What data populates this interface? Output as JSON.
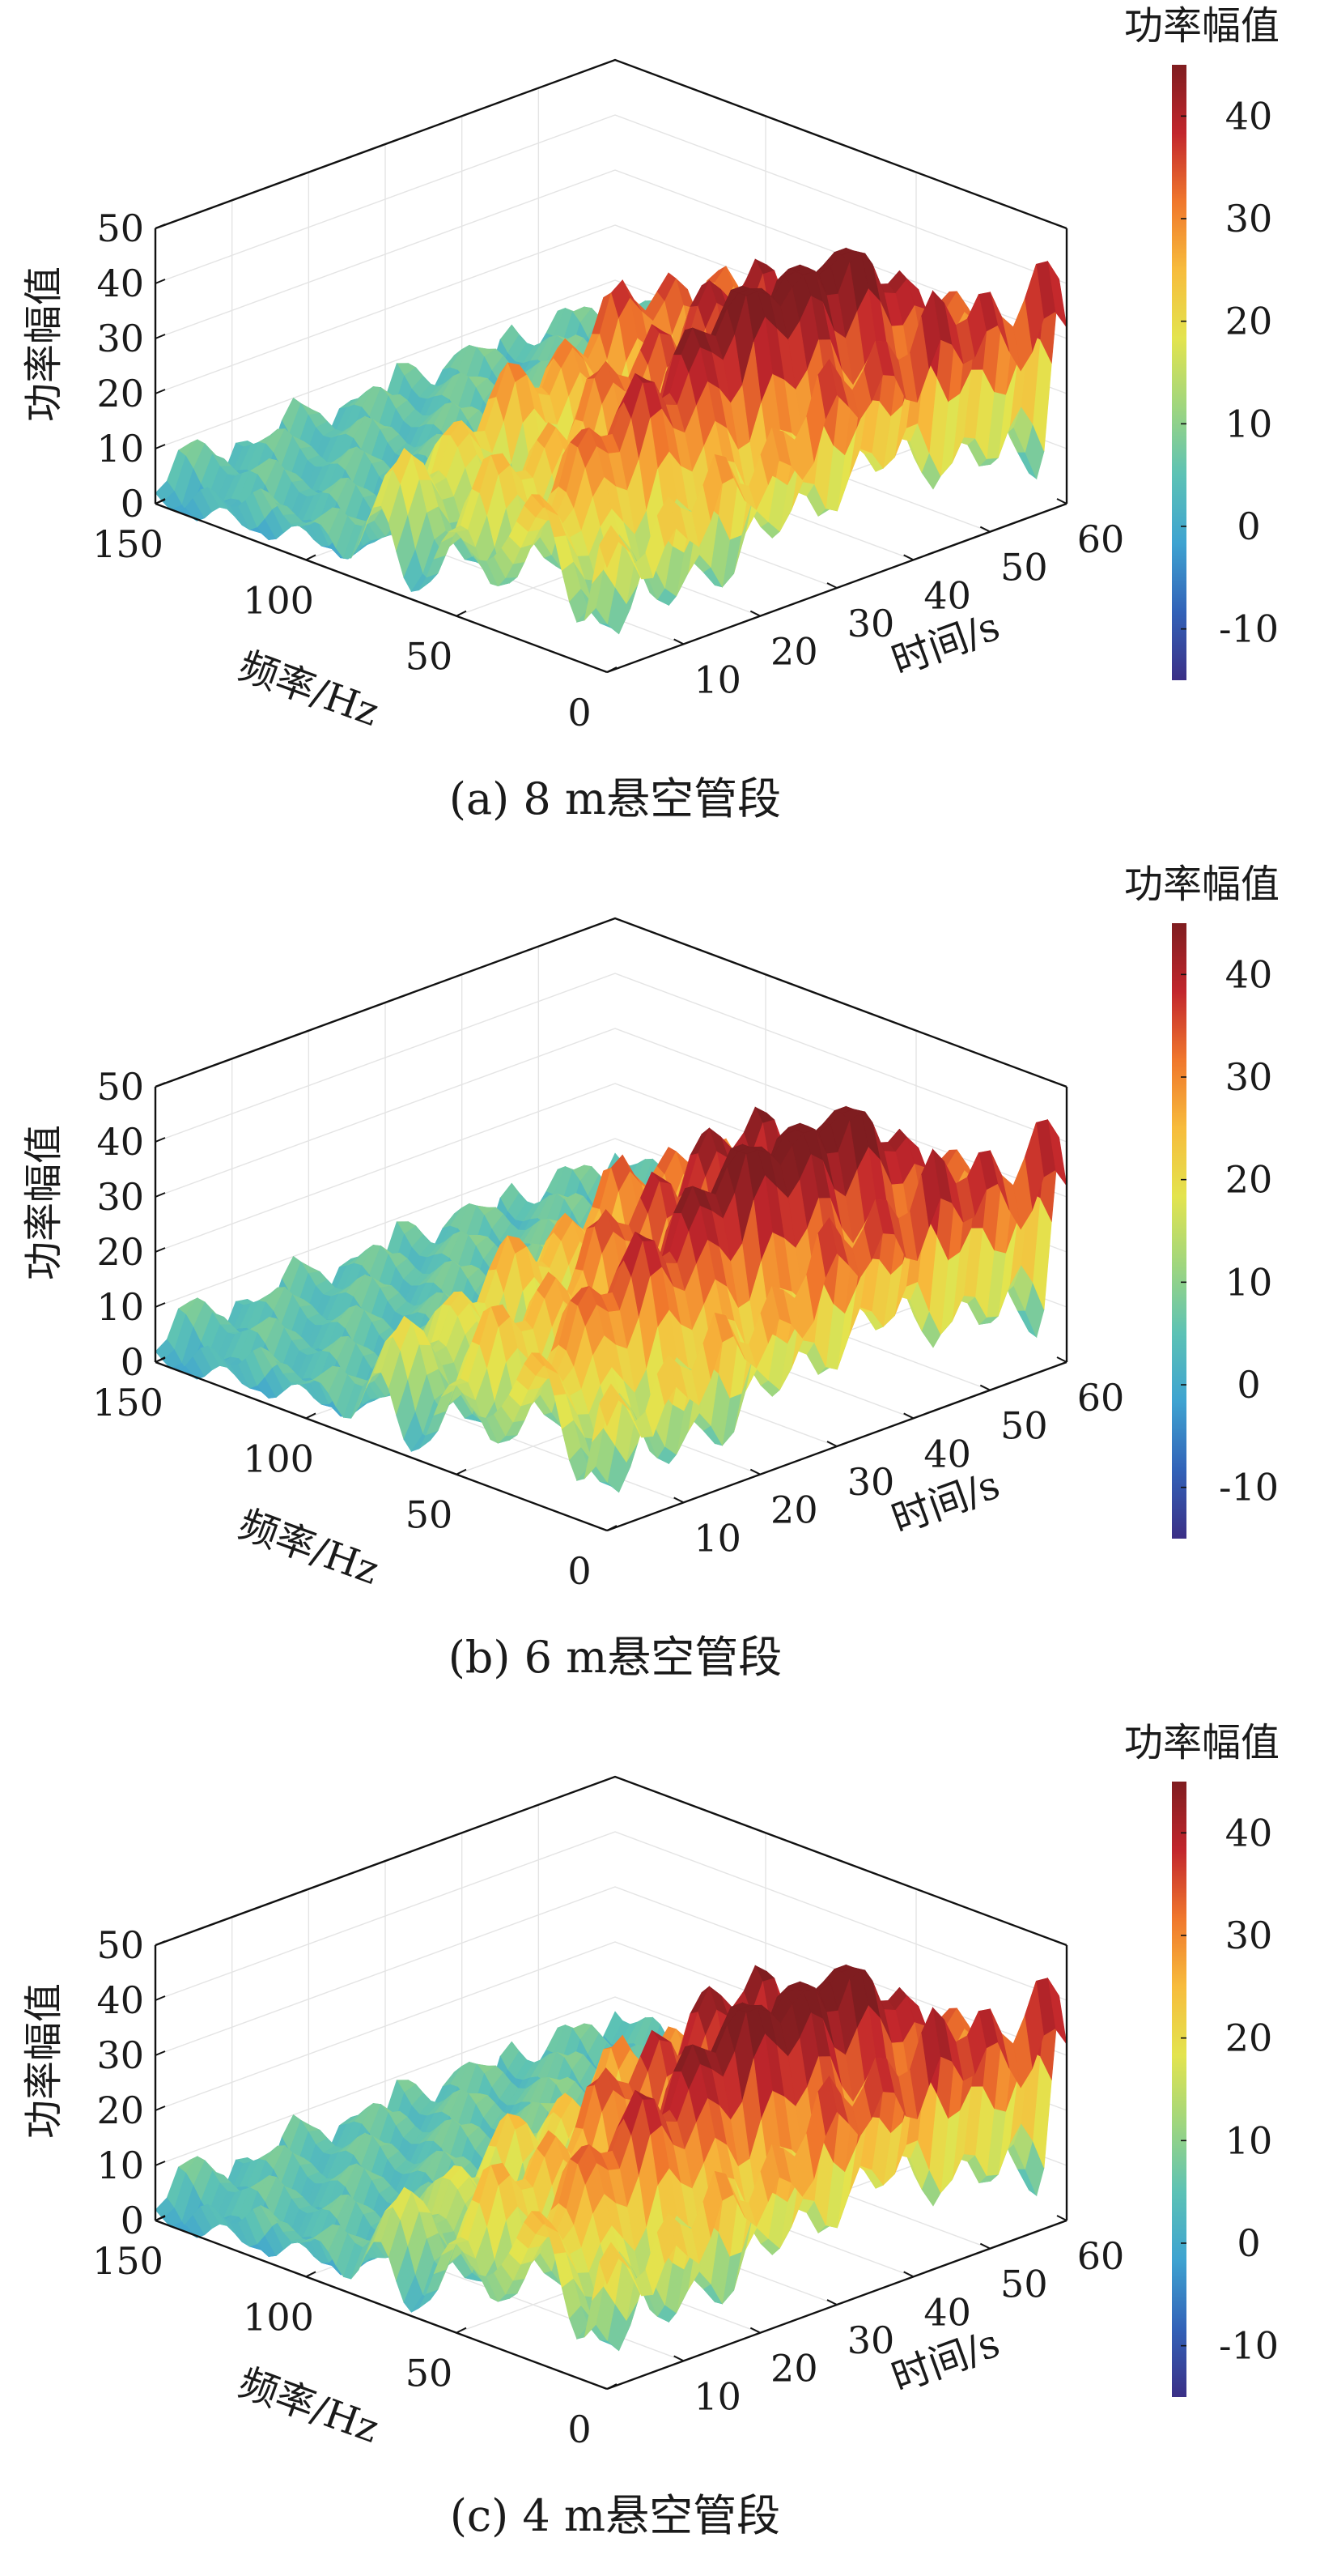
{
  "chart_data": [
    {
      "type": "surface",
      "caption": "(a)  8 m悬空管段",
      "colorbar_label": "功率幅值",
      "zlabel": "功率幅值",
      "xlabel": "频率/Hz",
      "ylabel": "时间/s",
      "freq_ticks": [
        "0",
        "50",
        "100",
        "150"
      ],
      "time_ticks": [
        "10",
        "20",
        "30",
        "40",
        "50",
        "60"
      ],
      "z_ticks": [
        "0",
        "10",
        "20",
        "30",
        "40",
        "50"
      ],
      "colorbar_ticks": [
        "-10",
        "0",
        "10",
        "20",
        "30",
        "40"
      ],
      "freq_range": [
        0,
        150
      ],
      "time_range": [
        0,
        60
      ],
      "z_range": [
        0,
        50
      ],
      "color_range": [
        -15,
        45
      ],
      "ridges": [
        {
          "freq_hz": 2,
          "peak": 37,
          "shape": "rising",
          "width": 4
        },
        {
          "freq_hz": 25,
          "peak": 40,
          "shape": "hump",
          "width": 10
        },
        {
          "freq_hz": 50,
          "peak": 28,
          "shape": "hump",
          "width": 8
        },
        {
          "freq_hz": 75,
          "peak": 25,
          "shape": "hump",
          "width": 8
        }
      ]
    },
    {
      "type": "surface",
      "caption": "(b)  6 m悬空管段",
      "colorbar_label": "功率幅值",
      "zlabel": "功率幅值",
      "xlabel": "频率/Hz",
      "ylabel": "时间/s",
      "freq_ticks": [
        "0",
        "50",
        "100",
        "150"
      ],
      "time_ticks": [
        "10",
        "20",
        "30",
        "40",
        "50",
        "60"
      ],
      "z_ticks": [
        "0",
        "10",
        "20",
        "30",
        "40",
        "50"
      ],
      "colorbar_ticks": [
        "-10",
        "0",
        "10",
        "20",
        "30",
        "40"
      ],
      "freq_range": [
        0,
        150
      ],
      "time_range": [
        0,
        60
      ],
      "z_range": [
        0,
        50
      ],
      "color_range": [
        -15,
        45
      ],
      "ridges": [
        {
          "freq_hz": 2,
          "peak": 37,
          "shape": "rising",
          "width": 4
        },
        {
          "freq_hz": 25,
          "peak": 40,
          "shape": "hump",
          "width": 10
        },
        {
          "freq_hz": 50,
          "peak": 30,
          "shape": "hump",
          "width": 8
        },
        {
          "freq_hz": 75,
          "peak": 22,
          "shape": "hump",
          "width": 8
        }
      ]
    },
    {
      "type": "surface",
      "caption": "(c)  4 m悬空管段",
      "colorbar_label": "功率幅值",
      "zlabel": "功率幅值",
      "xlabel": "频率/Hz",
      "ylabel": "时间/s",
      "freq_ticks": [
        "0",
        "50",
        "100",
        "150"
      ],
      "time_ticks": [
        "10",
        "20",
        "30",
        "40",
        "50",
        "60"
      ],
      "z_ticks": [
        "0",
        "10",
        "20",
        "30",
        "40",
        "50"
      ],
      "colorbar_ticks": [
        "-10",
        "0",
        "10",
        "20",
        "30",
        "40"
      ],
      "freq_range": [
        0,
        150
      ],
      "time_range": [
        0,
        60
      ],
      "z_range": [
        0,
        50
      ],
      "color_range": [
        -15,
        45
      ],
      "ridges": [
        {
          "freq_hz": 2,
          "peak": 37,
          "shape": "rising",
          "width": 4
        },
        {
          "freq_hz": 25,
          "peak": 40,
          "shape": "hump",
          "width": 10
        },
        {
          "freq_hz": 50,
          "peak": 30,
          "shape": "hump",
          "width": 8
        },
        {
          "freq_hz": 75,
          "peak": 18,
          "shape": "hump",
          "width": 8
        }
      ]
    }
  ],
  "colormap": [
    "#3b2f86",
    "#3262b8",
    "#3ea3d1",
    "#5cc2b5",
    "#9fd67e",
    "#e3e44e",
    "#f7bc3c",
    "#f0772c",
    "#c2262c",
    "#7f1d20"
  ]
}
